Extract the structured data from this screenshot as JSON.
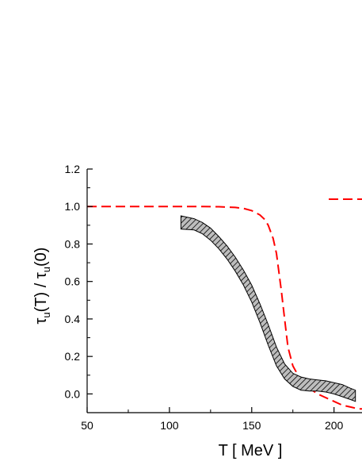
{
  "chart_data": {
    "type": "line",
    "title": "",
    "xlabel": "T  [ MeV ]",
    "ylabel": {
      "tau": "τ",
      "sub": "u",
      "arg_T": "(T) / ",
      "arg_0": "(0)"
    },
    "xlim": [
      50,
      217
    ],
    "ylim": [
      -0.1,
      1.2
    ],
    "x_ticks": [
      50,
      100,
      150,
      200
    ],
    "x_tick_labels": [
      "50",
      "100",
      "150",
      "200"
    ],
    "y_ticks": [
      0.0,
      0.2,
      0.4,
      0.6,
      0.8,
      1.0,
      1.2
    ],
    "y_tick_labels": [
      "0.0",
      "0.2",
      "0.4",
      "0.6",
      "0.8",
      "1.0",
      "1.2"
    ],
    "grid": false,
    "legend": {
      "position": "top-right",
      "entries": [
        {
          "style": "dashed",
          "color": "#ff0000"
        }
      ]
    },
    "colors": {
      "dashed_curve": "#ff0000",
      "band_fill": "#bdbdbd",
      "hatch": "#000000",
      "axis": "#000000"
    },
    "series": [
      {
        "style": "dashed-line",
        "x": [
          50,
          80,
          100,
          120,
          130,
          140,
          145,
          150,
          155,
          158,
          160,
          163,
          165,
          168,
          170,
          172,
          175,
          180,
          185,
          190,
          195,
          200,
          205,
          210,
          215,
          217
        ],
        "y": [
          1.0,
          1.0,
          1.0,
          1.0,
          0.999,
          0.995,
          0.99,
          0.978,
          0.955,
          0.93,
          0.9,
          0.83,
          0.75,
          0.55,
          0.4,
          0.25,
          0.15,
          0.07,
          0.03,
          0.0,
          -0.02,
          -0.04,
          -0.06,
          -0.07,
          -0.08,
          -0.08
        ]
      },
      {
        "style": "hatched-band",
        "x": [
          107,
          115,
          120,
          125,
          130,
          135,
          140,
          145,
          150,
          155,
          160,
          165,
          170,
          175,
          180,
          185,
          190,
          195,
          200,
          205,
          210,
          213
        ],
        "y_upper": [
          0.95,
          0.935,
          0.915,
          0.885,
          0.84,
          0.79,
          0.73,
          0.66,
          0.58,
          0.48,
          0.37,
          0.25,
          0.16,
          0.11,
          0.09,
          0.08,
          0.075,
          0.07,
          0.06,
          0.05,
          0.03,
          0.02
        ],
        "y_lower": [
          0.88,
          0.875,
          0.855,
          0.82,
          0.775,
          0.72,
          0.655,
          0.58,
          0.49,
          0.38,
          0.26,
          0.15,
          0.08,
          0.04,
          0.02,
          0.015,
          0.015,
          0.01,
          0.0,
          -0.015,
          -0.03,
          -0.04
        ]
      }
    ]
  }
}
